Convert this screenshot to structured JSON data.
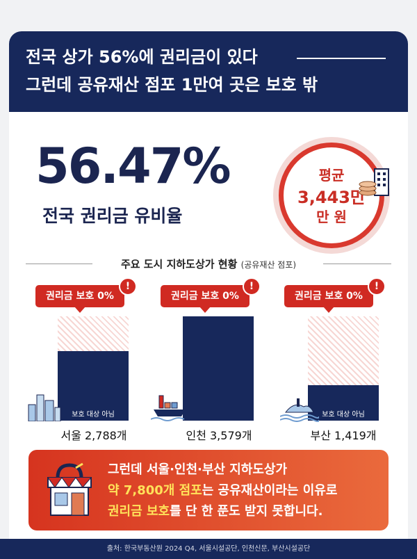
{
  "header": {
    "line1": "전국 상가 56%에 권리금이 있다",
    "line2": "그런데 공유재산 점포 1만여 곳은 보호 밖"
  },
  "stat": {
    "value": "56.47%",
    "label": "전국 권리금 유비율"
  },
  "badge": {
    "line1": "평균",
    "line2": "3,443만",
    "line3": "만 원"
  },
  "section": {
    "title": "주요 도시 지하도상가 현황",
    "subtitle": "(공유재산 점포)"
  },
  "cities": [
    {
      "tag": "권리금 보호 0%",
      "alert": "!",
      "bar_label": "보호 대상 아님",
      "name": "서울 2,788개",
      "count": 2788
    },
    {
      "tag": "권리금 보호 0%",
      "alert": "!",
      "bar_label": "",
      "name": "인천 3,579개",
      "count": 3579
    },
    {
      "tag": "권리금 보호 0%",
      "alert": "!",
      "bar_label": "보호 대상 아님",
      "name": "부산 1,419개",
      "count": 1419
    }
  ],
  "footer": {
    "line1": "그런데 서울·인천·부산 지하도상가",
    "line2_highlight": "약 7,800개 점포",
    "line2_rest": "는 공유재산이라는 이유로",
    "line3_highlight": "권리금 보호",
    "line3_rest": "를 단 한 푼도 받지 못합니다."
  },
  "source": "출처: 한국부동산원 2024 Q4, 서울시설공단, 인천신문, 부산시설공단",
  "colors": {
    "navy": "#17285b",
    "red": "#d02a22",
    "yellow": "#ffe25a"
  }
}
